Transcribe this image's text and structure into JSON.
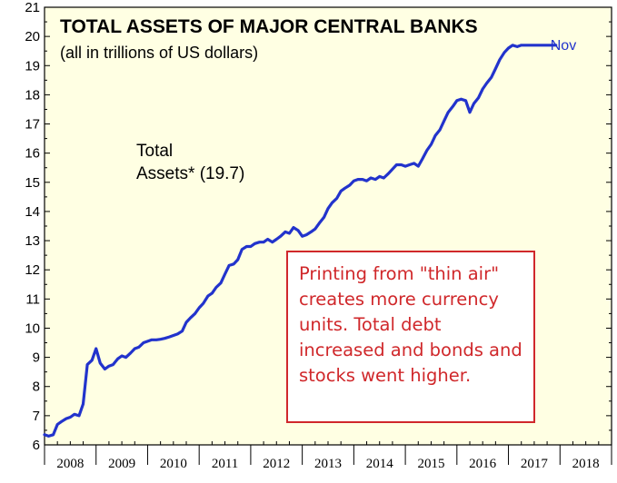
{
  "chart_data": {
    "type": "line",
    "title": "TOTAL ASSETS OF MAJOR CENTRAL BANKS",
    "subtitle": "(all in trillions of US dollars)",
    "ylim": [
      6,
      21
    ],
    "yticks": [
      "6",
      "7",
      "8",
      "9",
      "10",
      "11",
      "12",
      "13",
      "14",
      "15",
      "16",
      "17",
      "18",
      "19",
      "20",
      "21"
    ],
    "xlim": [
      2008,
      2019
    ],
    "categories": [
      "2008",
      "2009",
      "2010",
      "2011",
      "2012",
      "2013",
      "2014",
      "2015",
      "2016",
      "2017",
      "2018"
    ],
    "series": [
      {
        "name": "Total Assets* (19.7)",
        "label_line1": "Total",
        "label_line2": "Assets* (19.7)",
        "end_label": "Nov",
        "color": "#2233cc",
        "x": [
          2008.0,
          2008.08,
          2008.17,
          2008.25,
          2008.33,
          2008.42,
          2008.5,
          2008.58,
          2008.67,
          2008.75,
          2008.83,
          2008.92,
          2009.0,
          2009.08,
          2009.17,
          2009.25,
          2009.33,
          2009.42,
          2009.5,
          2009.58,
          2009.67,
          2009.75,
          2009.83,
          2009.92,
          2010.0,
          2010.08,
          2010.17,
          2010.25,
          2010.33,
          2010.42,
          2010.5,
          2010.58,
          2010.67,
          2010.75,
          2010.83,
          2010.92,
          2011.0,
          2011.08,
          2011.17,
          2011.25,
          2011.33,
          2011.42,
          2011.5,
          2011.58,
          2011.67,
          2011.75,
          2011.83,
          2011.92,
          2012.0,
          2012.08,
          2012.17,
          2012.25,
          2012.33,
          2012.42,
          2012.5,
          2012.58,
          2012.67,
          2012.75,
          2012.83,
          2012.92,
          2013.0,
          2013.08,
          2013.17,
          2013.25,
          2013.33,
          2013.42,
          2013.5,
          2013.58,
          2013.67,
          2013.75,
          2013.83,
          2013.92,
          2014.0,
          2014.08,
          2014.17,
          2014.25,
          2014.33,
          2014.42,
          2014.5,
          2014.58,
          2014.67,
          2014.75,
          2014.83,
          2014.92,
          2015.0,
          2015.08,
          2015.17,
          2015.25,
          2015.33,
          2015.42,
          2015.5,
          2015.58,
          2015.67,
          2015.75,
          2015.83,
          2015.92,
          2016.0,
          2016.08,
          2016.17,
          2016.25,
          2016.33,
          2016.42,
          2016.5,
          2016.58,
          2016.67,
          2016.75,
          2016.83,
          2016.92,
          2017.0,
          2017.08,
          2017.17,
          2017.25,
          2017.33,
          2017.42,
          2017.5,
          2017.58,
          2017.67,
          2017.75,
          2017.83,
          2017.92
        ],
        "values": [
          6.35,
          6.3,
          6.35,
          6.7,
          6.8,
          6.9,
          6.95,
          7.05,
          7.0,
          7.4,
          8.75,
          8.9,
          9.3,
          8.8,
          8.6,
          8.7,
          8.75,
          8.95,
          9.05,
          9.0,
          9.15,
          9.3,
          9.35,
          9.5,
          9.55,
          9.6,
          9.6,
          9.62,
          9.65,
          9.7,
          9.75,
          9.8,
          9.9,
          10.2,
          10.35,
          10.5,
          10.7,
          10.85,
          11.1,
          11.2,
          11.4,
          11.55,
          11.85,
          12.15,
          12.2,
          12.35,
          12.7,
          12.8,
          12.8,
          12.9,
          12.95,
          12.95,
          13.05,
          12.95,
          13.05,
          13.15,
          13.3,
          13.25,
          13.45,
          13.35,
          13.15,
          13.2,
          13.3,
          13.4,
          13.6,
          13.8,
          14.1,
          14.3,
          14.45,
          14.7,
          14.8,
          14.9,
          15.05,
          15.1,
          15.1,
          15.05,
          15.15,
          15.1,
          15.2,
          15.15,
          15.3,
          15.45,
          15.6,
          15.6,
          15.55,
          15.6,
          15.65,
          15.55,
          15.8,
          16.1,
          16.3,
          16.6,
          16.8,
          17.1,
          17.4,
          17.6,
          17.8,
          17.85,
          17.8,
          17.4,
          17.7,
          17.9,
          18.2,
          18.4,
          18.6,
          18.9,
          19.2,
          19.45,
          19.6,
          19.7,
          19.65,
          19.7,
          19.7,
          19.7,
          19.7,
          19.7,
          19.7,
          19.7,
          19.7,
          19.7
        ]
      }
    ],
    "annotation": "Printing from \"thin air\" creates more currency units. Total debt increased and bonds and stocks went higher."
  }
}
